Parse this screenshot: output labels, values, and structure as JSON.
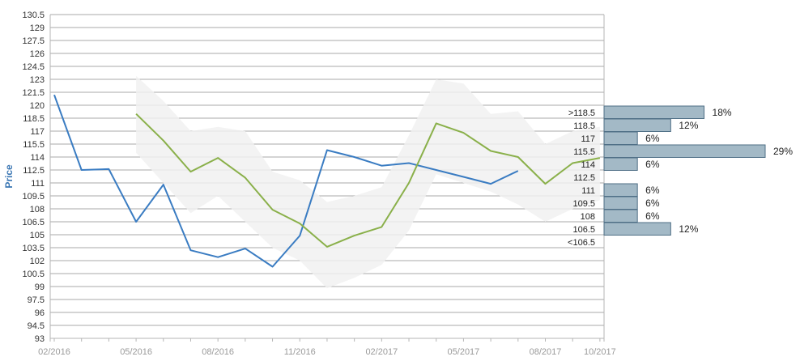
{
  "chart_data": {
    "type": "line",
    "ylabel": "Price",
    "ylim": [
      93,
      130.5
    ],
    "yticks": [
      "93",
      "94.5",
      "96",
      "97.5",
      "99",
      "100.5",
      "102",
      "103.5",
      "105",
      "106.5",
      "108",
      "109.5",
      "111",
      "112.5",
      "114",
      "115.5",
      "117",
      "118.5",
      "120",
      "121.5",
      "123",
      "124.5",
      "126",
      "127.5",
      "129",
      "130.5"
    ],
    "xticks": [
      "02/2016",
      "05/2016",
      "08/2016",
      "11/2016",
      "02/2017",
      "05/2017",
      "08/2017",
      "10/2017"
    ],
    "grid": true,
    "series": [
      {
        "role": "price",
        "color": "#3a7cc2",
        "points": [
          [
            "2016-02",
            121.2
          ],
          [
            "2016-03",
            112.5
          ],
          [
            "2016-04",
            112.6
          ],
          [
            "2016-05",
            106.5
          ],
          [
            "2016-06",
            110.8
          ],
          [
            "2016-07",
            103.2
          ],
          [
            "2016-08",
            102.4
          ],
          [
            "2016-09",
            103.4
          ],
          [
            "2016-10",
            101.3
          ],
          [
            "2016-11",
            104.9
          ],
          [
            "2016-12",
            114.8
          ],
          [
            "2017-01",
            114.0
          ],
          [
            "2017-02",
            113.0
          ],
          [
            "2017-03",
            113.3
          ],
          [
            "2017-04",
            112.5
          ],
          [
            "2017-05",
            111.7
          ],
          [
            "2017-06",
            110.9
          ],
          [
            "2017-07",
            112.4
          ]
        ]
      },
      {
        "role": "target",
        "color": "#8ab04a",
        "points": [
          [
            "2016-05",
            119.0
          ],
          [
            "2016-06",
            115.9
          ],
          [
            "2016-07",
            112.3
          ],
          [
            "2016-08",
            113.9
          ],
          [
            "2016-09",
            111.6
          ],
          [
            "2016-10",
            107.9
          ],
          [
            "2016-11",
            106.3
          ],
          [
            "2016-12",
            103.6
          ],
          [
            "2017-01",
            104.9
          ],
          [
            "2017-02",
            105.9
          ],
          [
            "2017-03",
            111.0
          ],
          [
            "2017-04",
            117.9
          ],
          [
            "2017-05",
            116.8
          ],
          [
            "2017-06",
            114.7
          ],
          [
            "2017-07",
            114.0
          ],
          [
            "2017-08",
            110.9
          ],
          [
            "2017-09",
            113.3
          ],
          [
            "2017-10",
            113.9
          ]
        ]
      }
    ],
    "range_band": {
      "color": "#f1f1f1",
      "upper": [
        [
          "2016-05",
          123.4
        ],
        [
          "2016-06",
          120.5
        ],
        [
          "2016-07",
          117.0
        ],
        [
          "2016-08",
          117.5
        ],
        [
          "2016-09",
          117.0
        ],
        [
          "2016-10",
          112.3
        ],
        [
          "2016-11",
          111.3
        ],
        [
          "2016-12",
          108.8
        ],
        [
          "2017-01",
          109.5
        ],
        [
          "2017-02",
          110.5
        ],
        [
          "2017-03",
          116.5
        ],
        [
          "2017-04",
          123.0
        ],
        [
          "2017-05",
          122.5
        ],
        [
          "2017-06",
          119.0
        ],
        [
          "2017-07",
          119.3
        ],
        [
          "2017-08",
          115.5
        ],
        [
          "2017-09",
          117.0
        ],
        [
          "2017-10",
          117.5
        ]
      ],
      "lower": [
        [
          "2016-05",
          114.5
        ],
        [
          "2016-06",
          111.0
        ],
        [
          "2016-07",
          107.5
        ],
        [
          "2016-08",
          109.5
        ],
        [
          "2016-09",
          106.5
        ],
        [
          "2016-10",
          103.5
        ],
        [
          "2016-11",
          102.0
        ],
        [
          "2016-12",
          98.8
        ],
        [
          "2017-01",
          100.0
        ],
        [
          "2017-02",
          101.5
        ],
        [
          "2017-03",
          105.5
        ],
        [
          "2017-04",
          112.0
        ],
        [
          "2017-05",
          111.0
        ],
        [
          "2017-06",
          110.0
        ],
        [
          "2017-07",
          108.5
        ],
        [
          "2017-08",
          106.5
        ],
        [
          "2017-09",
          108.0
        ],
        [
          "2017-10",
          109.0
        ]
      ]
    },
    "distribution": {
      "color": "#a3b9c6",
      "bins": [
        {
          "label": ">118.5",
          "pct": 18,
          "text": "18%"
        },
        {
          "label": "118.5",
          "pct": 12,
          "text": "12%"
        },
        {
          "label": "117",
          "pct": 6,
          "text": "6%"
        },
        {
          "label": "115.5",
          "pct": 29,
          "text": "29%"
        },
        {
          "label": "114",
          "pct": 6,
          "text": "6%"
        },
        {
          "label": "112.5",
          "pct": 0,
          "text": ""
        },
        {
          "label": "111",
          "pct": 6,
          "text": "6%"
        },
        {
          "label": "109.5",
          "pct": 6,
          "text": "6%"
        },
        {
          "label": "108",
          "pct": 6,
          "text": "6%"
        },
        {
          "label": "106.5",
          "pct": 12,
          "text": "12%"
        },
        {
          "label": "<106.5",
          "pct": 0,
          "text": ""
        }
      ]
    }
  }
}
